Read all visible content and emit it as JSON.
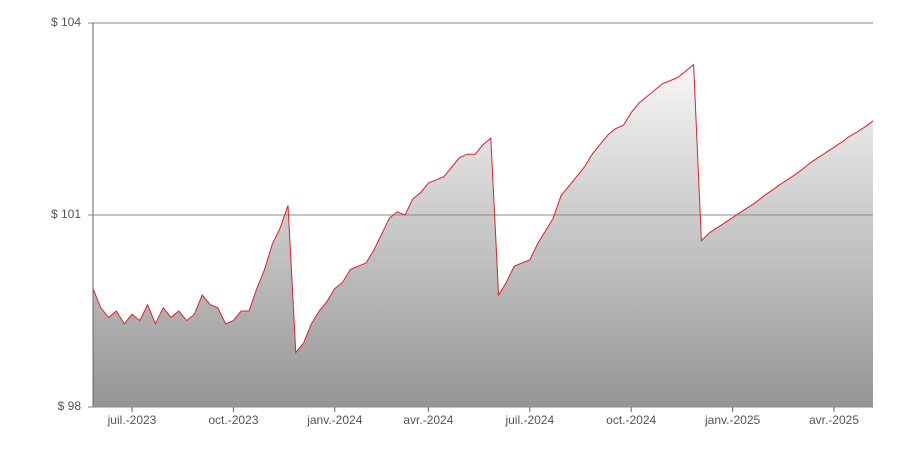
{
  "chart_data": {
    "type": "area",
    "line_color": "#d9232a",
    "fill_top": "#f7f7f7",
    "fill_bottom": "#959595",
    "grid": true,
    "ylim": [
      98,
      104
    ],
    "yticks": [
      {
        "value": 98,
        "label": "$ 98"
      },
      {
        "value": 101,
        "label": "$ 101"
      },
      {
        "value": 104,
        "label": "$ 104"
      }
    ],
    "categories": [
      null,
      null,
      null,
      null,
      null,
      "juil.-2023",
      null,
      null,
      null,
      null,
      null,
      null,
      null,
      null,
      null,
      null,
      null,
      null,
      "oct.-2023",
      null,
      null,
      null,
      null,
      null,
      null,
      null,
      null,
      null,
      null,
      null,
      null,
      "janv.-2024",
      null,
      null,
      null,
      null,
      null,
      null,
      null,
      null,
      null,
      null,
      null,
      "avr.-2024",
      null,
      null,
      null,
      null,
      null,
      null,
      null,
      null,
      null,
      null,
      null,
      null,
      "juil.-2024",
      null,
      null,
      null,
      null,
      null,
      null,
      null,
      null,
      null,
      null,
      null,
      null,
      "oct.-2024",
      null,
      null,
      null,
      null,
      null,
      null,
      null,
      null,
      null,
      null,
      null,
      null,
      "janv.-2025",
      null,
      null,
      null,
      null,
      null,
      null,
      null,
      null,
      null,
      null,
      null,
      null,
      "avr.-2025",
      null,
      null,
      null,
      null,
      null
    ],
    "values": [
      99.85,
      99.55,
      99.4,
      99.5,
      99.3,
      99.45,
      99.35,
      99.6,
      99.3,
      99.55,
      99.4,
      99.5,
      99.35,
      99.45,
      99.75,
      99.6,
      99.55,
      99.3,
      99.35,
      99.5,
      99.5,
      99.85,
      100.15,
      100.55,
      100.8,
      101.15,
      98.85,
      99.0,
      99.3,
      99.5,
      99.65,
      99.85,
      99.95,
      100.15,
      100.2,
      100.25,
      100.45,
      100.7,
      100.95,
      101.05,
      101.0,
      101.25,
      101.35,
      101.5,
      101.55,
      101.6,
      101.75,
      101.9,
      101.95,
      101.95,
      102.1,
      102.2,
      99.75,
      99.95,
      100.2,
      100.25,
      100.3,
      100.55,
      100.75,
      100.95,
      101.3,
      101.45,
      101.6,
      101.75,
      101.95,
      102.1,
      102.25,
      102.35,
      102.4,
      102.6,
      102.75,
      102.85,
      102.95,
      103.05,
      103.1,
      103.15,
      103.25,
      103.35,
      100.6,
      100.72,
      100.8,
      100.88,
      100.96,
      101.04,
      101.12,
      101.2,
      101.3,
      101.38,
      101.47,
      101.55,
      101.63,
      101.72,
      101.82,
      101.9,
      101.98,
      102.06,
      102.14,
      102.23,
      102.3,
      102.38,
      102.47
    ]
  }
}
